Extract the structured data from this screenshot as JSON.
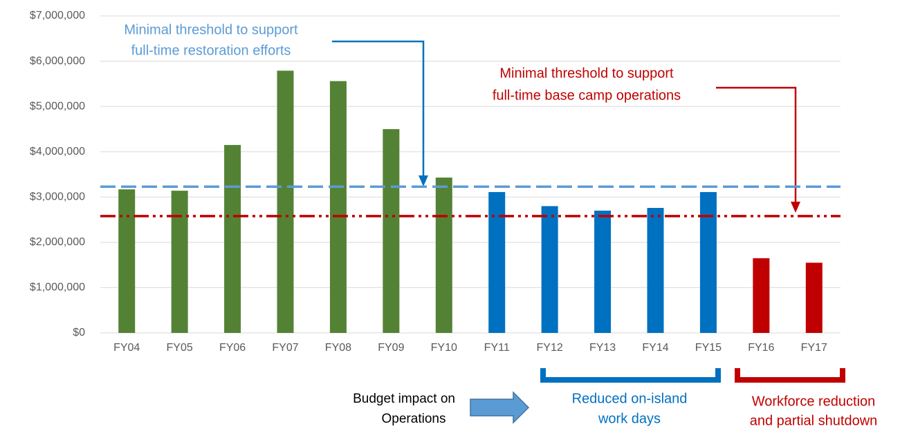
{
  "chart_data": {
    "type": "bar",
    "categories": [
      "FY04",
      "FY05",
      "FY06",
      "FY07",
      "FY08",
      "FY09",
      "FY10",
      "FY11",
      "FY12",
      "FY13",
      "FY14",
      "FY15",
      "FY16",
      "FY17"
    ],
    "values": [
      3170000,
      3140000,
      4150000,
      5790000,
      5560000,
      4500000,
      3430000,
      3110000,
      2800000,
      2700000,
      2760000,
      3110000,
      1650000,
      1550000
    ],
    "colors": [
      "#548235",
      "#548235",
      "#548235",
      "#548235",
      "#548235",
      "#548235",
      "#548235",
      "#0070c0",
      "#0070c0",
      "#0070c0",
      "#0070c0",
      "#0070c0",
      "#c00000",
      "#c00000"
    ],
    "ylim": [
      0,
      7000000
    ],
    "yticks": [
      {
        "value": 0,
        "label": "$0"
      },
      {
        "value": 1000000,
        "label": "$1,000,000"
      },
      {
        "value": 2000000,
        "label": "$2,000,000"
      },
      {
        "value": 3000000,
        "label": "$3,000,000"
      },
      {
        "value": 4000000,
        "label": "$4,000,000"
      },
      {
        "value": 5000000,
        "label": "$5,000,000"
      },
      {
        "value": 6000000,
        "label": "$6,000,000"
      },
      {
        "value": 7000000,
        "label": "$7,000,000"
      }
    ],
    "grid": true,
    "reference_lines": [
      {
        "value": 3230000,
        "color": "#5b9bd5",
        "style": "dashed",
        "label": [
          "Minimal threshold to support",
          "full-time restoration efforts"
        ]
      },
      {
        "value": 2580000,
        "color": "#c00000",
        "style": "dash-dot-dot",
        "label": [
          "Minimal threshold to support",
          "full-time base camp operations"
        ]
      }
    ],
    "annotations": {
      "impact": [
        "Budget impact on",
        "Operations"
      ],
      "reduced": [
        "Reduced on-island",
        "work days"
      ],
      "workforce": [
        "Workforce reduction",
        "and partial shutdown"
      ]
    }
  }
}
